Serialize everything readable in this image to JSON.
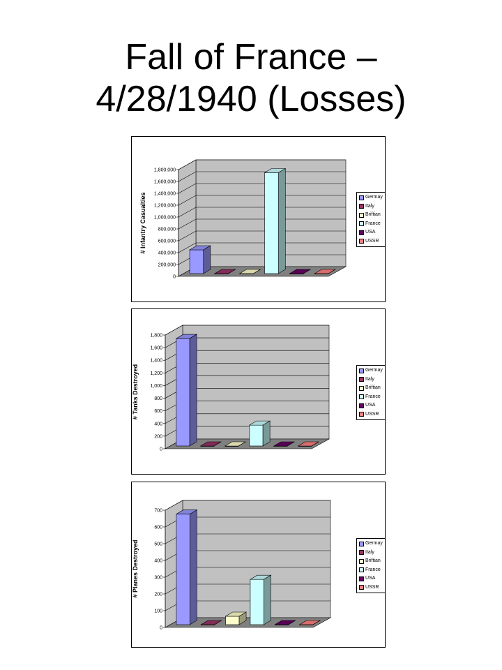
{
  "title_line1": "Fall of France –",
  "title_line2": "4/28/1940 (Losses)",
  "colors": {
    "Germay": "#9999ff",
    "Italy": "#993366",
    "Briftian": "#ffffcc",
    "France": "#ccffff",
    "USA": "#660066",
    "USSR": "#ff8080",
    "wall": "#c0c0c0",
    "floor": "#808080"
  },
  "chart_data": [
    {
      "type": "bar",
      "categories": [
        "Germay",
        "Italy",
        "Briftian",
        "France",
        "USA",
        "USSR"
      ],
      "values": [
        400000,
        0,
        0,
        1700000,
        0,
        0
      ],
      "ylabel": "# Infantry Casualties",
      "ylim": [
        0,
        1800000
      ],
      "yticks": [
        "0",
        "200,000",
        "400,000",
        "600,000",
        "800,000",
        "1,000,000",
        "1,200,000",
        "1,400,000",
        "1,600,000",
        "1,800,000"
      ],
      "legend": [
        "Germay",
        "Italy",
        "Briftian",
        "France",
        "USA",
        "USSR"
      ],
      "legend_position": "right",
      "grid": true
    },
    {
      "type": "bar",
      "categories": [
        "Germay",
        "Italy",
        "Briftian",
        "France",
        "USA",
        "USSR"
      ],
      "values": [
        1700,
        0,
        0,
        330,
        0,
        0
      ],
      "ylabel": "# Tanks Destroyed",
      "ylim": [
        0,
        1800
      ],
      "yticks": [
        "0",
        "200",
        "400",
        "600",
        "800",
        "1,000",
        "1,200",
        "1,400",
        "1,600",
        "1,800"
      ],
      "legend": [
        "Germay",
        "Italy",
        "Briftian",
        "France",
        "USA",
        "USSR"
      ],
      "legend_position": "right",
      "grid": true
    },
    {
      "type": "bar",
      "categories": [
        "Germay",
        "Italy",
        "Briftian",
        "France",
        "USA",
        "USSR"
      ],
      "values": [
        660,
        0,
        50,
        270,
        0,
        0
      ],
      "ylabel": "# Planes Destroyed",
      "ylim": [
        0,
        700
      ],
      "yticks": [
        "0",
        "100",
        "200",
        "300",
        "400",
        "500",
        "600",
        "700"
      ],
      "legend": [
        "Germay",
        "Italy",
        "Briftian",
        "France",
        "USA",
        "USSR"
      ],
      "legend_position": "right",
      "grid": true
    }
  ]
}
